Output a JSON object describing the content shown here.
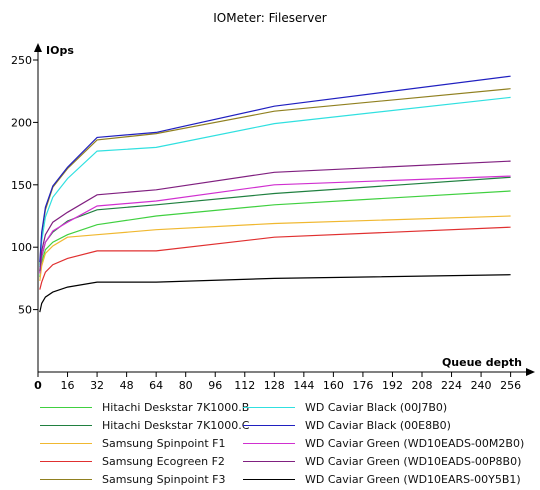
{
  "chart_data": {
    "type": "line",
    "title": "IOMeter: Fileserver",
    "xlabel": "Queue depth",
    "ylabel": "IOps",
    "x": [
      1,
      2,
      4,
      8,
      16,
      32,
      64,
      128,
      256
    ],
    "xlim": [
      0,
      260
    ],
    "ylim": [
      0,
      250
    ],
    "x_ticks": [
      0,
      16,
      32,
      48,
      64,
      80,
      96,
      112,
      128,
      144,
      160,
      176,
      192,
      208,
      224,
      240,
      256
    ],
    "y_ticks": [
      50,
      100,
      150,
      200,
      250
    ],
    "grid": false,
    "legend_position": "bottom",
    "series": [
      {
        "name": "Hitachi Deskstar 7K1000.B",
        "color": "#40d040",
        "values": [
          76,
          88,
          98,
          104,
          110,
          118,
          125,
          134,
          145
        ]
      },
      {
        "name": "Hitachi Deskstar 7K1000.C",
        "color": "#208040",
        "values": [
          80,
          92,
          104,
          112,
          121,
          130,
          134,
          143,
          156
        ]
      },
      {
        "name": "Samsung Spinpoint F1",
        "color": "#f0b830",
        "values": [
          73,
          85,
          95,
          101,
          108,
          110,
          114,
          119,
          125
        ]
      },
      {
        "name": "Samsung Ecogreen F2",
        "color": "#e03030",
        "values": [
          66,
          72,
          80,
          86,
          91,
          97,
          97,
          108,
          116
        ]
      },
      {
        "name": "Samsung Spinpoint F3",
        "color": "#908020",
        "values": [
          86,
          110,
          130,
          148,
          163,
          186,
          191,
          209,
          227
        ]
      },
      {
        "name": "WD Caviar Black (00J7B0)",
        "color": "#30e0e0",
        "values": [
          84,
          105,
          124,
          140,
          155,
          177,
          180,
          199,
          220
        ]
      },
      {
        "name": "WD Caviar Black (00E8B0)",
        "color": "#2020c0",
        "values": [
          88,
          112,
          132,
          149,
          164,
          188,
          192,
          213,
          237
        ]
      },
      {
        "name": "WD Caviar Green (WD10EADS-00M2B0)",
        "color": "#d030d0",
        "values": [
          79,
          93,
          104,
          113,
          120,
          133,
          137,
          150,
          157
        ]
      },
      {
        "name": "WD Caviar Green (WD10EADS-00P8B0)",
        "color": "#802080",
        "values": [
          81,
          97,
          110,
          120,
          128,
          142,
          146,
          160,
          169
        ]
      },
      {
        "name": "WD Caviar Green (WD10EARS-00Y5B1)",
        "color": "#000000",
        "values": [
          48,
          55,
          60,
          64,
          68,
          72,
          72,
          75,
          78
        ]
      }
    ]
  }
}
